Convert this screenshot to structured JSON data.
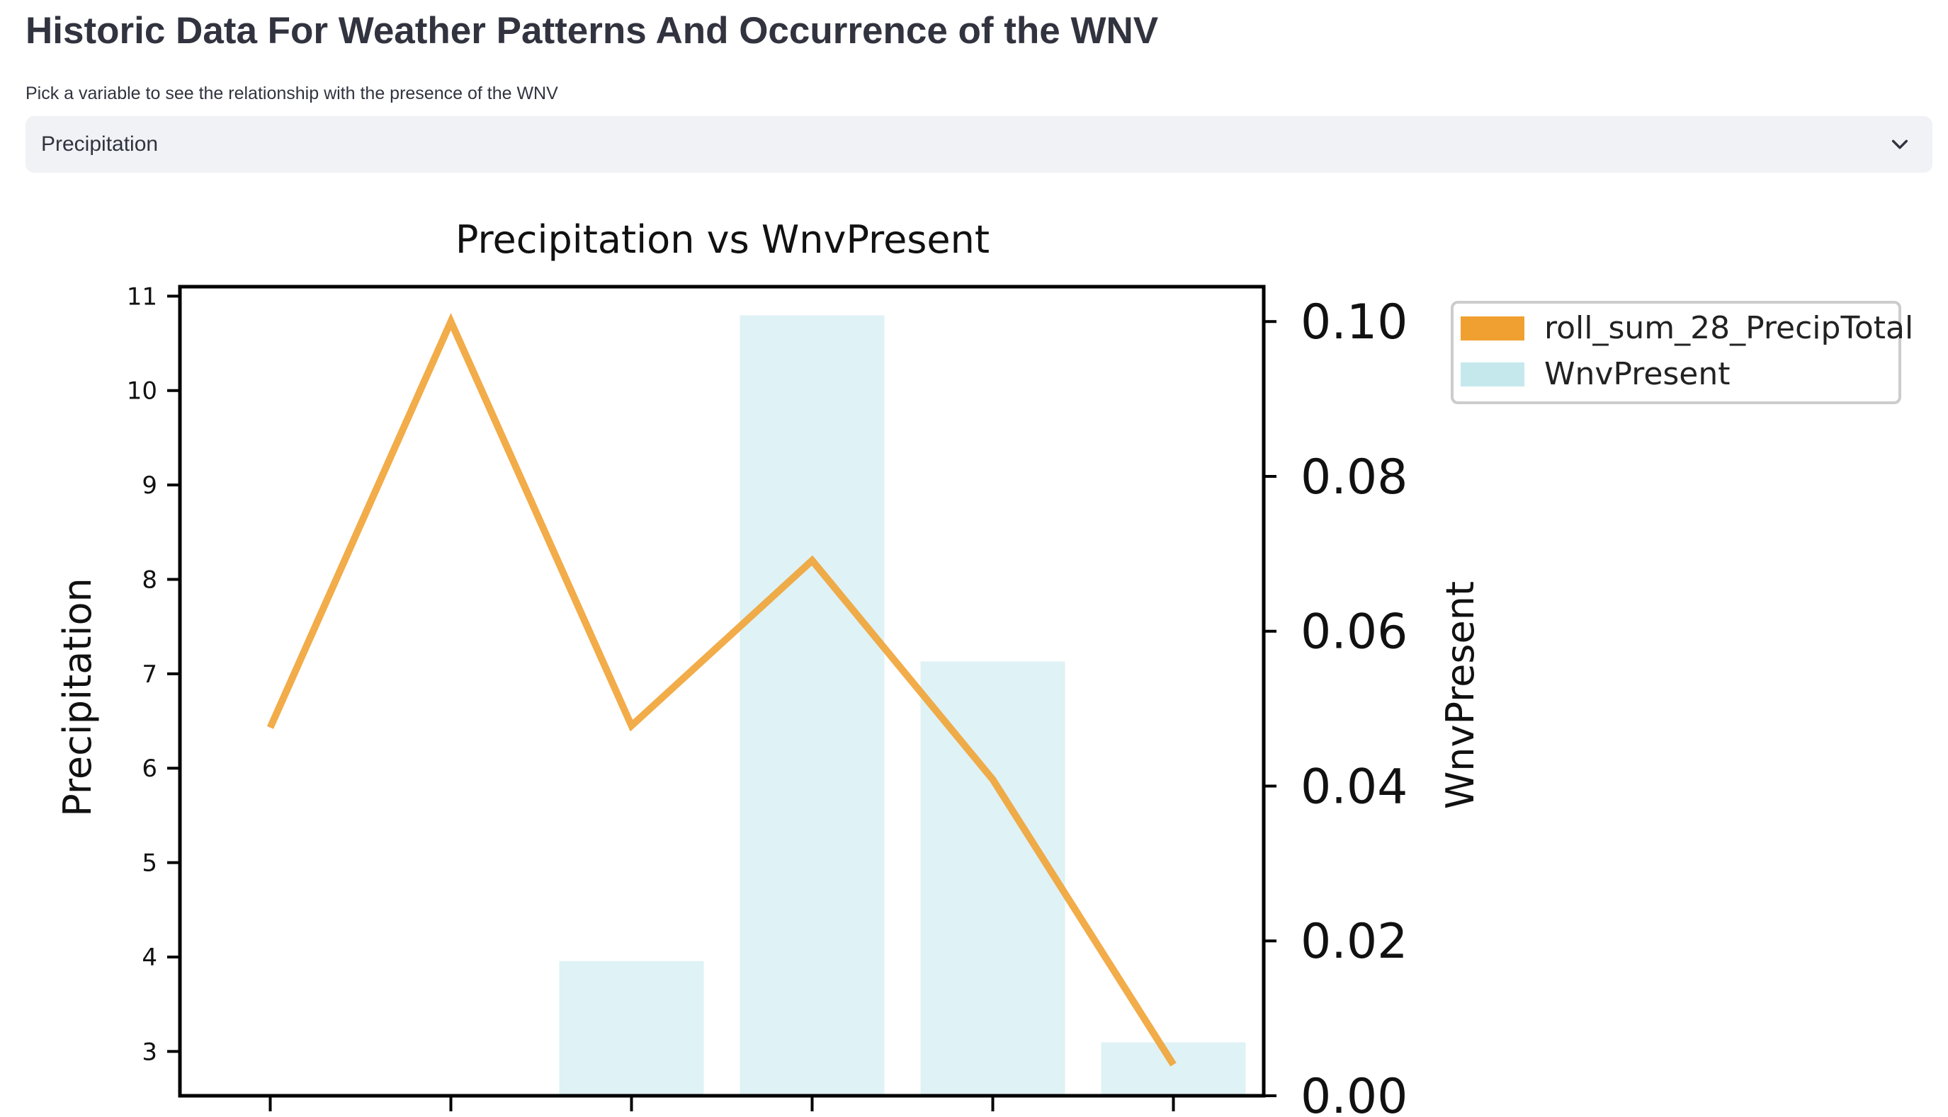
{
  "page": {
    "title": "Historic Data For Weather Patterns And Occurrence of the WNV"
  },
  "variable_select": {
    "label": "Pick a variable to see the relationship with the presence of the WNV",
    "selected": "Precipitation",
    "icon": "chevron-down-icon"
  },
  "chart_data": {
    "type": "bar",
    "title": "Precipitation vs WnvPresent",
    "xlabel": "",
    "ylabel": "Precipitation",
    "y2label": "WnvPresent",
    "categories": [
      "",
      "",
      "",
      "",
      "",
      ""
    ],
    "ylim": [
      2.53,
      11.1
    ],
    "y_ticks": [
      3,
      4,
      5,
      6,
      7,
      8,
      9,
      10,
      11
    ],
    "y2lim": [
      0,
      0.1045
    ],
    "y2_ticks": [
      "0.00",
      "0.02",
      "0.04",
      "0.06",
      "0.08",
      "0.10"
    ],
    "grid": false,
    "legend_position": "outside-right",
    "series": [
      {
        "name": "roll_sum_28_PrecipTotal",
        "kind": "line",
        "axis": "left",
        "color": "#f0a030",
        "values": [
          6.43,
          10.73,
          6.45,
          8.2,
          5.88,
          2.86
        ]
      },
      {
        "name": "WnvPresent",
        "kind": "bar",
        "axis": "right",
        "color": "#bfe6eb",
        "values": [
          0,
          0,
          0.0174,
          0.1008,
          0.0561,
          0.0069
        ]
      }
    ]
  }
}
